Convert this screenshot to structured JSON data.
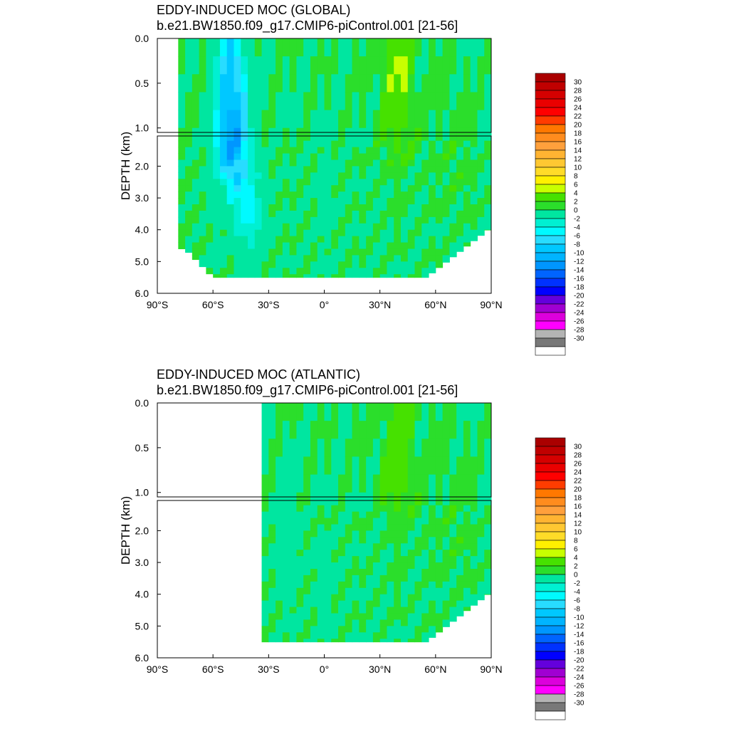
{
  "chart_data": [
    {
      "type": "heatmap",
      "title": "EDDY-INDUCED MOC (GLOBAL)",
      "subtitle": "b.e21.BW1850.f09_g17.CMIP6-piControl.001 [21-56]",
      "ylabel": "DEPTH (km)",
      "xlim": [
        -90,
        90
      ],
      "ylim": [
        6.0,
        0.0
      ],
      "x_ticks": [
        "90°S",
        "60°S",
        "30°S",
        "0°",
        "30°N",
        "60°N",
        "90°N"
      ],
      "y_ticks_upper": [
        "0.0",
        "0.5",
        "1.0"
      ],
      "y_ticks_lower": [
        "2.0",
        "3.0",
        "4.0",
        "5.0",
        "6.0"
      ],
      "domain": {
        "lat_min": -78,
        "lat_max": 90,
        "max_depth_km": 5.5
      },
      "features": [
        {
          "lat": -50,
          "depth_km": 1.2,
          "value": -14
        },
        {
          "lat": -40,
          "depth_km": 3.5,
          "value": -6
        },
        {
          "lat": 0,
          "depth_km": 3.0,
          "value": -1
        },
        {
          "lat": 40,
          "depth_km": 0.3,
          "value": 4
        },
        {
          "lat": 70,
          "depth_km": 2.0,
          "value": 1
        }
      ]
    },
    {
      "type": "heatmap",
      "title": "EDDY-INDUCED MOC (ATLANTIC)",
      "subtitle": "b.e21.BW1850.f09_g17.CMIP6-piControl.001 [21-56]",
      "ylabel": "DEPTH (km)",
      "xlim": [
        -90,
        90
      ],
      "ylim": [
        6.0,
        0.0
      ],
      "x_ticks": [
        "90°S",
        "60°S",
        "30°S",
        "0°",
        "30°N",
        "60°N",
        "90°N"
      ],
      "y_ticks_upper": [
        "0.0",
        "0.5",
        "1.0"
      ],
      "y_ticks_lower": [
        "2.0",
        "3.0",
        "4.0",
        "5.0",
        "6.0"
      ],
      "domain": {
        "lat_min": -33,
        "lat_max": 90,
        "max_depth_km": 5.5
      },
      "features": [
        {
          "lat": -20,
          "depth_km": 2.5,
          "value": -2
        },
        {
          "lat": 0,
          "depth_km": 3.5,
          "value": -1
        },
        {
          "lat": 40,
          "depth_km": 0.3,
          "value": 3
        },
        {
          "lat": 70,
          "depth_km": 2.0,
          "value": 1
        }
      ]
    }
  ],
  "colorbar": {
    "labels": [
      "30",
      "28",
      "26",
      "24",
      "22",
      "20",
      "18",
      "16",
      "14",
      "12",
      "10",
      "8",
      "6",
      "4",
      "2",
      "0",
      "-2",
      "-4",
      "-6",
      "-8",
      "-10",
      "-12",
      "-14",
      "-16",
      "-18",
      "-20",
      "-22",
      "-24",
      "-26",
      "-28",
      "-30"
    ],
    "colors": [
      "#aa0000",
      "#c00000",
      "#d50000",
      "#ea0000",
      "#ff0000",
      "#ff3c00",
      "#ff7800",
      "#ff8c1e",
      "#ffa03c",
      "#ffb432",
      "#ffc832",
      "#ffdc28",
      "#fff000",
      "#c8ff00",
      "#46e100",
      "#2bde2b",
      "#00e6a0",
      "#00f0d2",
      "#00faff",
      "#28dcff",
      "#00c8ff",
      "#00b4ff",
      "#0096ff",
      "#0064ff",
      "#0032ff",
      "#0000ff",
      "#6400dc",
      "#a000d2",
      "#dc00dc",
      "#ff00ff",
      "#b4b4b4",
      "#787878",
      "#ffffff"
    ]
  }
}
